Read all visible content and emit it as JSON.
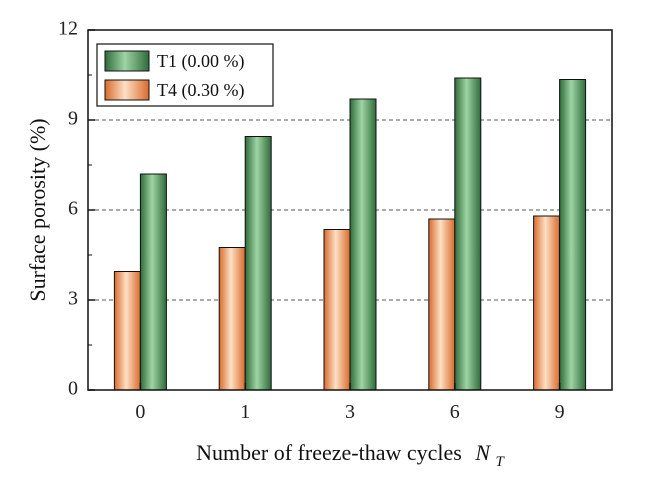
{
  "chart_data": {
    "type": "bar",
    "title": "",
    "xlabel": "Number of freeze-thaw cycles",
    "xlabel_symbol": "N",
    "xlabel_subscript": "T",
    "ylabel": "Surface porosity (%)",
    "categories": [
      "0",
      "1",
      "3",
      "6",
      "9"
    ],
    "ylim": [
      0,
      12
    ],
    "yticks": [
      "0",
      "3",
      "6",
      "9",
      "12"
    ],
    "grid": "dashed horizontal at 3, 6, 9",
    "legend_position": "top-left",
    "series": [
      {
        "name": "T1 (0.00 %)",
        "color": "#3f8a4e",
        "values": [
          7.2,
          8.45,
          9.7,
          10.4,
          10.35
        ]
      },
      {
        "name": "T4 (0.30 %)",
        "color": "#f0935a",
        "values": [
          3.95,
          4.75,
          5.35,
          5.7,
          5.8
        ]
      }
    ]
  }
}
